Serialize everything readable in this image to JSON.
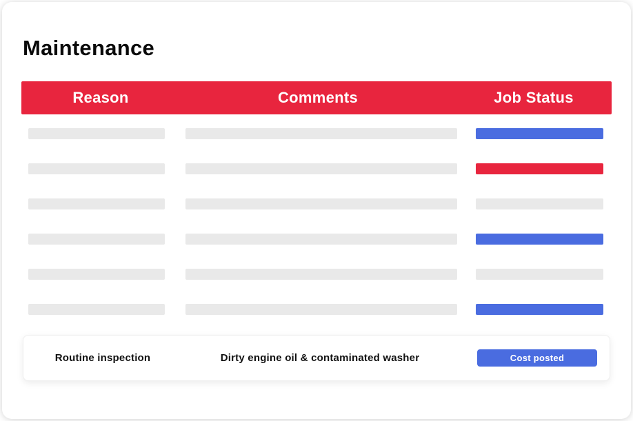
{
  "page": {
    "title": "Maintenance"
  },
  "table": {
    "columns": [
      {
        "label": "Reason"
      },
      {
        "label": "Comments"
      },
      {
        "label": "Job Status"
      }
    ],
    "skeleton_rows": [
      {
        "status_type": "blue"
      },
      {
        "status_type": "red"
      },
      {
        "status_type": "gray"
      },
      {
        "status_type": "blue"
      },
      {
        "status_type": "gray"
      },
      {
        "status_type": "blue"
      }
    ],
    "active_row": {
      "reason": "Routine inspection",
      "comments": "Dirty engine oil & contaminated washer",
      "status_label": "Cost posted"
    }
  },
  "colors": {
    "header_red": "#e8253e",
    "status_red": "#e8253e",
    "status_blue": "#4a6ce0",
    "badge_blue": "#4a6ce0",
    "placeholder_gray": "#e9e9e9"
  }
}
